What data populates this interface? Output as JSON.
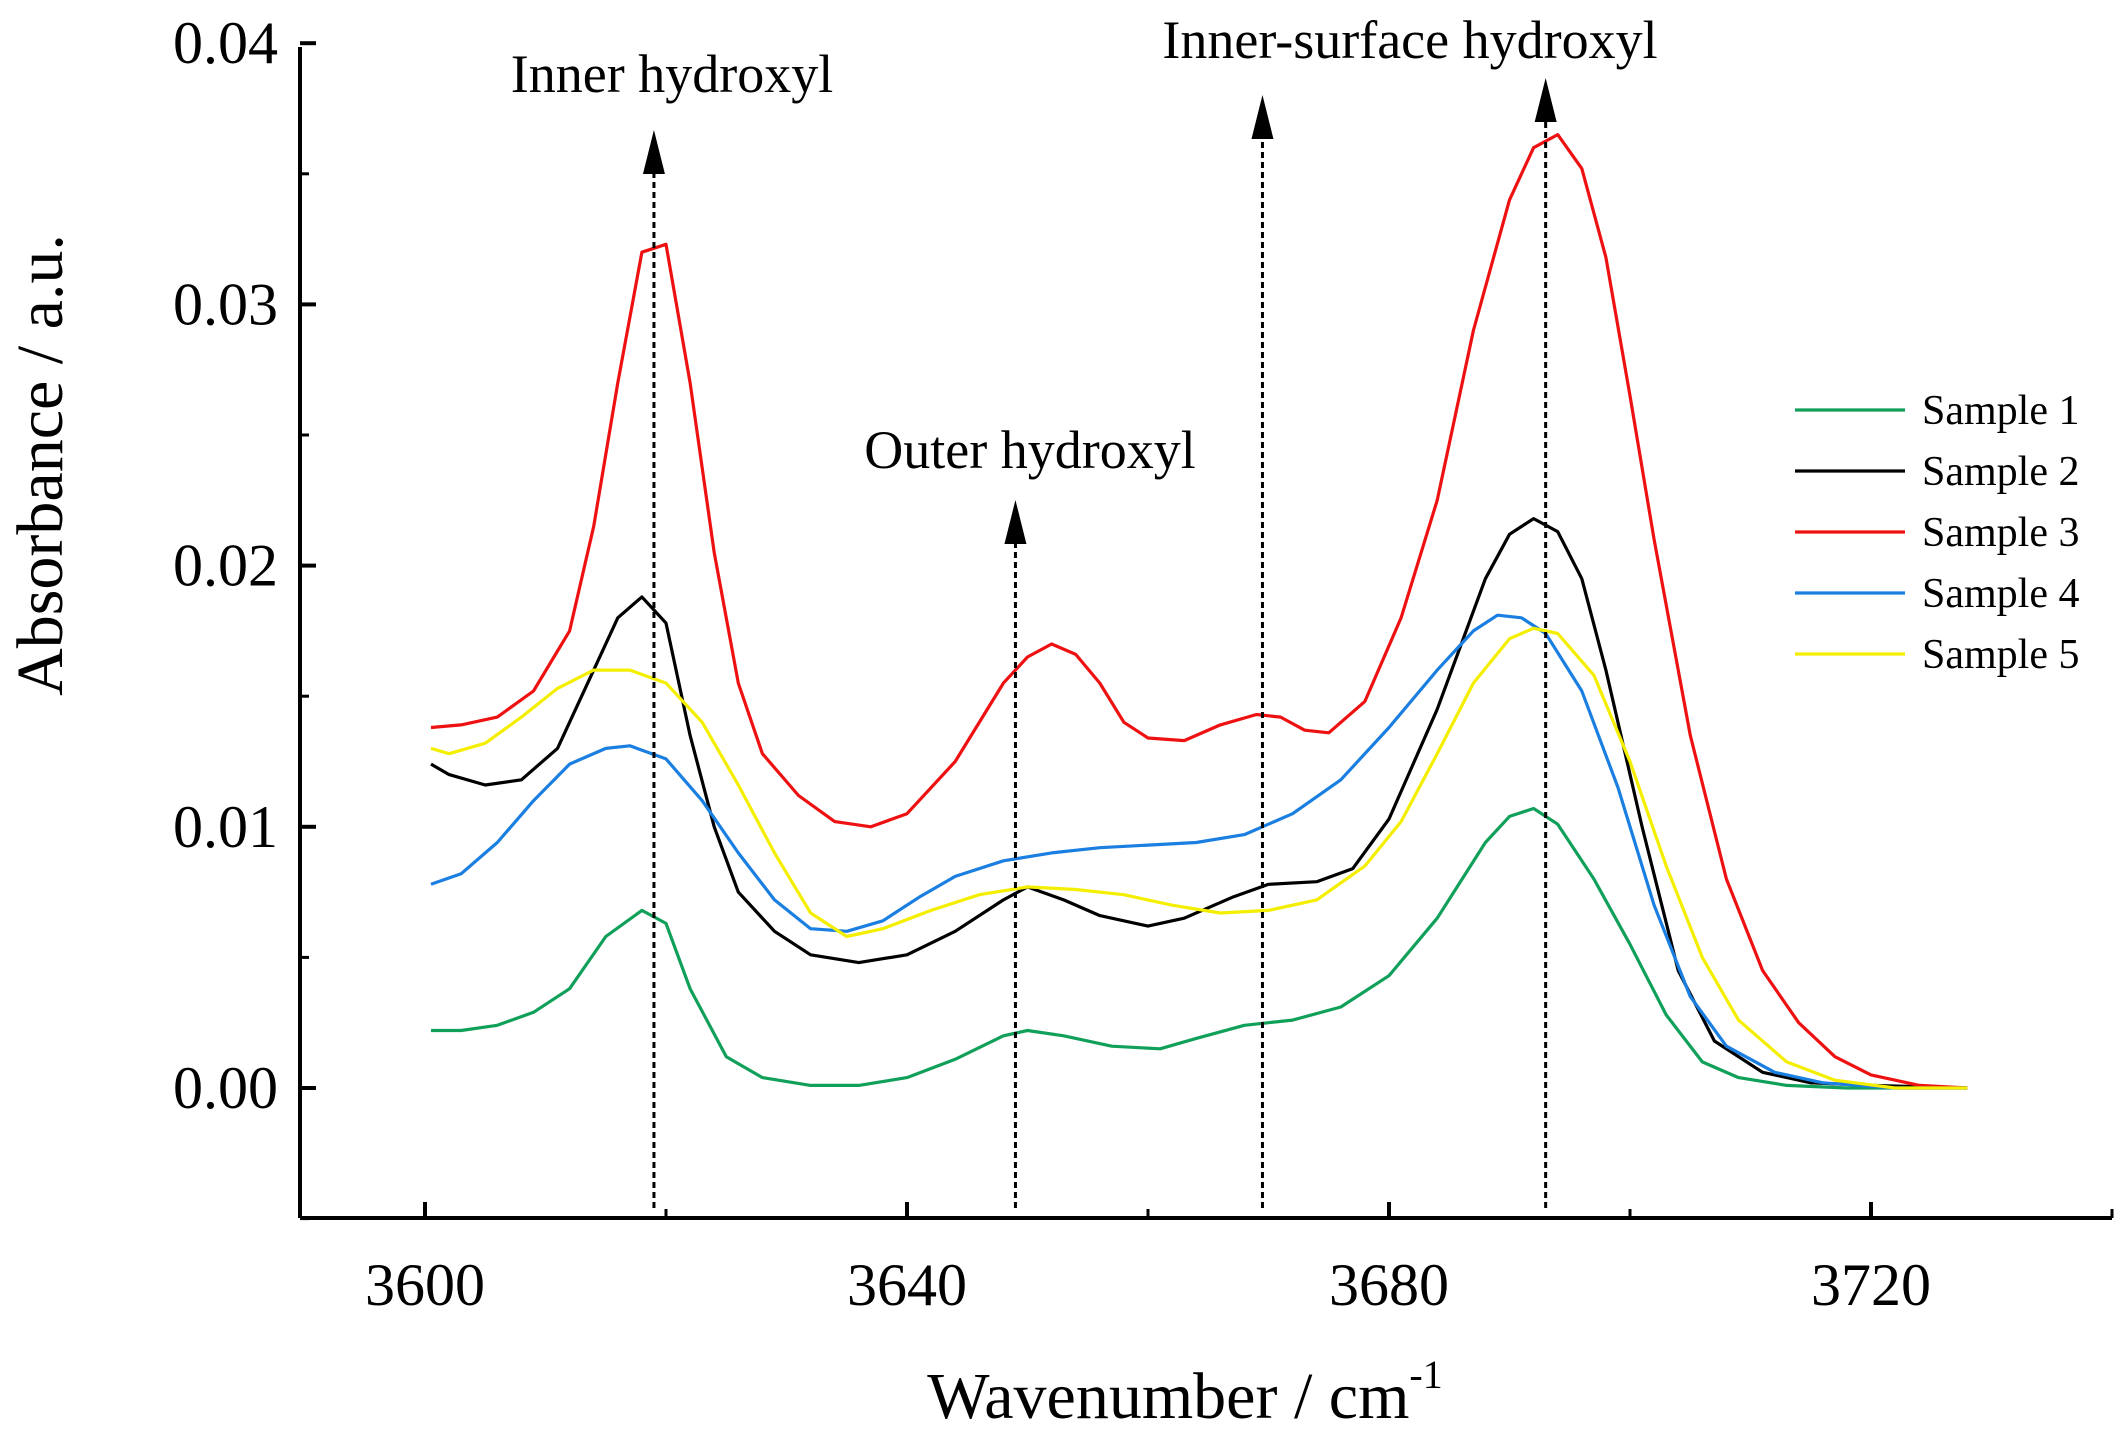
{
  "chart_data": {
    "type": "line",
    "title": "",
    "xlabel": "Wavenumber / cm",
    "xlabel_sup": "-1",
    "ylabel": "Absorbance / a.u.",
    "xlim": [
      3590,
      3740
    ],
    "ylim": [
      -0.005,
      0.04
    ],
    "xticks": [
      3600,
      3640,
      3680,
      3720
    ],
    "xtick_labels": [
      "3600",
      "3640",
      "3680",
      "3720"
    ],
    "yticks": [
      0.0,
      0.01,
      0.02,
      0.03,
      0.04
    ],
    "ytick_labels": [
      "0.00",
      "0.01",
      "0.02",
      "0.03",
      "0.04"
    ],
    "legend_position": "right",
    "series": [
      {
        "name": "Sample 1",
        "color": "#11a05a",
        "points": [
          [
            3600.5,
            0.0022
          ],
          [
            3603,
            0.0022
          ],
          [
            3606,
            0.0024
          ],
          [
            3609,
            0.0029
          ],
          [
            3612,
            0.0038
          ],
          [
            3615,
            0.0058
          ],
          [
            3618,
            0.0068
          ],
          [
            3620,
            0.0063
          ],
          [
            3622,
            0.0038
          ],
          [
            3625,
            0.0012
          ],
          [
            3628,
            0.0004
          ],
          [
            3632,
            0.0001
          ],
          [
            3636,
            0.0001
          ],
          [
            3640,
            0.0004
          ],
          [
            3644,
            0.0011
          ],
          [
            3648,
            0.002
          ],
          [
            3650,
            0.0022
          ],
          [
            3653,
            0.002
          ],
          [
            3657,
            0.0016
          ],
          [
            3661,
            0.0015
          ],
          [
            3664,
            0.0019
          ],
          [
            3668,
            0.0024
          ],
          [
            3672,
            0.0026
          ],
          [
            3676,
            0.0031
          ],
          [
            3680,
            0.0043
          ],
          [
            3684,
            0.0065
          ],
          [
            3688,
            0.0094
          ],
          [
            3690,
            0.0104
          ],
          [
            3692,
            0.0107
          ],
          [
            3694,
            0.0101
          ],
          [
            3697,
            0.008
          ],
          [
            3700,
            0.0055
          ],
          [
            3703,
            0.0028
          ],
          [
            3706,
            0.001
          ],
          [
            3709,
            0.0004
          ],
          [
            3713,
            0.0001
          ],
          [
            3718,
            0.0
          ],
          [
            3728,
            0.0
          ]
        ]
      },
      {
        "name": "Sample 2",
        "color": "#000000",
        "points": [
          [
            3600.5,
            0.0124
          ],
          [
            3602,
            0.012
          ],
          [
            3605,
            0.0116
          ],
          [
            3608,
            0.0118
          ],
          [
            3611,
            0.013
          ],
          [
            3614,
            0.016
          ],
          [
            3616,
            0.018
          ],
          [
            3618,
            0.0188
          ],
          [
            3620,
            0.0178
          ],
          [
            3622,
            0.0135
          ],
          [
            3624,
            0.01
          ],
          [
            3626,
            0.0075
          ],
          [
            3629,
            0.006
          ],
          [
            3632,
            0.0051
          ],
          [
            3636,
            0.0048
          ],
          [
            3640,
            0.0051
          ],
          [
            3644,
            0.006
          ],
          [
            3648,
            0.0072
          ],
          [
            3650,
            0.0077
          ],
          [
            3653,
            0.0072
          ],
          [
            3656,
            0.0066
          ],
          [
            3660,
            0.0062
          ],
          [
            3663,
            0.0065
          ],
          [
            3667,
            0.0073
          ],
          [
            3670,
            0.0078
          ],
          [
            3674,
            0.0079
          ],
          [
            3677,
            0.0084
          ],
          [
            3680,
            0.0103
          ],
          [
            3684,
            0.0145
          ],
          [
            3688,
            0.0195
          ],
          [
            3690,
            0.0212
          ],
          [
            3692,
            0.0218
          ],
          [
            3694,
            0.0213
          ],
          [
            3696,
            0.0195
          ],
          [
            3698,
            0.016
          ],
          [
            3701,
            0.01
          ],
          [
            3704,
            0.0045
          ],
          [
            3707,
            0.0018
          ],
          [
            3711,
            0.0006
          ],
          [
            3715,
            0.0002
          ],
          [
            3720,
            0.0001
          ],
          [
            3728,
            0.0
          ]
        ]
      },
      {
        "name": "Sample 3",
        "color": "#ee1111",
        "points": [
          [
            3600.5,
            0.0138
          ],
          [
            3603,
            0.0139
          ],
          [
            3606,
            0.0142
          ],
          [
            3609,
            0.0152
          ],
          [
            3612,
            0.0175
          ],
          [
            3614,
            0.0215
          ],
          [
            3616,
            0.027
          ],
          [
            3618,
            0.032
          ],
          [
            3620,
            0.0323
          ],
          [
            3622,
            0.027
          ],
          [
            3624,
            0.0205
          ],
          [
            3626,
            0.0155
          ],
          [
            3628,
            0.0128
          ],
          [
            3631,
            0.0112
          ],
          [
            3634,
            0.0102
          ],
          [
            3637,
            0.01
          ],
          [
            3640,
            0.0105
          ],
          [
            3644,
            0.0125
          ],
          [
            3648,
            0.0155
          ],
          [
            3650,
            0.0165
          ],
          [
            3652,
            0.017
          ],
          [
            3654,
            0.0166
          ],
          [
            3656,
            0.0155
          ],
          [
            3658,
            0.014
          ],
          [
            3660,
            0.0134
          ],
          [
            3663,
            0.0133
          ],
          [
            3666,
            0.0139
          ],
          [
            3669,
            0.0143
          ],
          [
            3671,
            0.0142
          ],
          [
            3673,
            0.0137
          ],
          [
            3675,
            0.0136
          ],
          [
            3678,
            0.0148
          ],
          [
            3681,
            0.018
          ],
          [
            3684,
            0.0225
          ],
          [
            3687,
            0.029
          ],
          [
            3690,
            0.034
          ],
          [
            3692,
            0.036
          ],
          [
            3694,
            0.0365
          ],
          [
            3696,
            0.0352
          ],
          [
            3698,
            0.0318
          ],
          [
            3700,
            0.0265
          ],
          [
            3702,
            0.021
          ],
          [
            3705,
            0.0135
          ],
          [
            3708,
            0.008
          ],
          [
            3711,
            0.0045
          ],
          [
            3714,
            0.0025
          ],
          [
            3717,
            0.0012
          ],
          [
            3720,
            0.0005
          ],
          [
            3724,
            0.0001
          ],
          [
            3728,
            0.0
          ]
        ]
      },
      {
        "name": "Sample 4",
        "color": "#1a7fe0",
        "points": [
          [
            3600.5,
            0.0078
          ],
          [
            3603,
            0.0082
          ],
          [
            3606,
            0.0094
          ],
          [
            3609,
            0.011
          ],
          [
            3612,
            0.0124
          ],
          [
            3615,
            0.013
          ],
          [
            3617,
            0.0131
          ],
          [
            3620,
            0.0126
          ],
          [
            3623,
            0.011
          ],
          [
            3626,
            0.009
          ],
          [
            3629,
            0.0072
          ],
          [
            3632,
            0.0061
          ],
          [
            3635,
            0.006
          ],
          [
            3638,
            0.0064
          ],
          [
            3641,
            0.0073
          ],
          [
            3644,
            0.0081
          ],
          [
            3648,
            0.0087
          ],
          [
            3652,
            0.009
          ],
          [
            3656,
            0.0092
          ],
          [
            3660,
            0.0093
          ],
          [
            3664,
            0.0094
          ],
          [
            3668,
            0.0097
          ],
          [
            3672,
            0.0105
          ],
          [
            3676,
            0.0118
          ],
          [
            3680,
            0.0138
          ],
          [
            3684,
            0.016
          ],
          [
            3687,
            0.0175
          ],
          [
            3689,
            0.0181
          ],
          [
            3691,
            0.018
          ],
          [
            3693,
            0.0174
          ],
          [
            3696,
            0.0152
          ],
          [
            3699,
            0.0115
          ],
          [
            3702,
            0.007
          ],
          [
            3705,
            0.0035
          ],
          [
            3708,
            0.0016
          ],
          [
            3712,
            0.0006
          ],
          [
            3716,
            0.0002
          ],
          [
            3722,
            0.0
          ],
          [
            3728,
            0.0
          ]
        ]
      },
      {
        "name": "Sample 5",
        "color": "#f4ee00",
        "points": [
          [
            3600.5,
            0.013
          ],
          [
            3602,
            0.0128
          ],
          [
            3605,
            0.0132
          ],
          [
            3608,
            0.0142
          ],
          [
            3611,
            0.0153
          ],
          [
            3614,
            0.016
          ],
          [
            3617,
            0.016
          ],
          [
            3620,
            0.0155
          ],
          [
            3623,
            0.014
          ],
          [
            3626,
            0.0116
          ],
          [
            3629,
            0.009
          ],
          [
            3632,
            0.0067
          ],
          [
            3635,
            0.0058
          ],
          [
            3638,
            0.0061
          ],
          [
            3642,
            0.0068
          ],
          [
            3646,
            0.0074
          ],
          [
            3650,
            0.0077
          ],
          [
            3654,
            0.0076
          ],
          [
            3658,
            0.0074
          ],
          [
            3662,
            0.007
          ],
          [
            3666,
            0.0067
          ],
          [
            3670,
            0.0068
          ],
          [
            3674,
            0.0072
          ],
          [
            3678,
            0.0085
          ],
          [
            3681,
            0.0102
          ],
          [
            3684,
            0.0128
          ],
          [
            3687,
            0.0155
          ],
          [
            3690,
            0.0172
          ],
          [
            3692,
            0.0176
          ],
          [
            3694,
            0.0174
          ],
          [
            3697,
            0.0158
          ],
          [
            3700,
            0.0125
          ],
          [
            3703,
            0.0085
          ],
          [
            3706,
            0.005
          ],
          [
            3709,
            0.0026
          ],
          [
            3713,
            0.001
          ],
          [
            3717,
            0.0003
          ],
          [
            3722,
            0.0
          ],
          [
            3728,
            0.0
          ]
        ]
      }
    ],
    "annotations": [
      {
        "text": "Inner hydroxyl",
        "x": 3619
      },
      {
        "text": "Outer hydroxyl",
        "x": 3649
      },
      {
        "text": "Inner-surface hydroxyl",
        "x": 3669.5
      },
      {
        "text": "",
        "x": 3693
      }
    ]
  }
}
